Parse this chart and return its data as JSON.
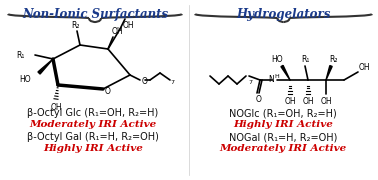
{
  "title_left": "Non-Ionic Surfactants",
  "title_right": "Hydrogelators",
  "title_color": "#1a3a8a",
  "left_label1": "β-Octyl Glc (R₁=OH, R₂=H)",
  "left_activity1": "Moderately IRI Active",
  "left_label2": "β-Octyl Gal (R₁=H, R₂=OH)",
  "left_activity2": "Highly IRI Active",
  "right_label1": "NOGlc (R₁=OH, R₂=H)",
  "right_activity1": "Highly IRI Active",
  "right_label2": "NOGal (R₁=H, R₂=OH)",
  "right_activity2": "Moderately IRI Active",
  "activity_color": "#cc0000",
  "label_color": "#111111",
  "bg_color": "#ffffff"
}
